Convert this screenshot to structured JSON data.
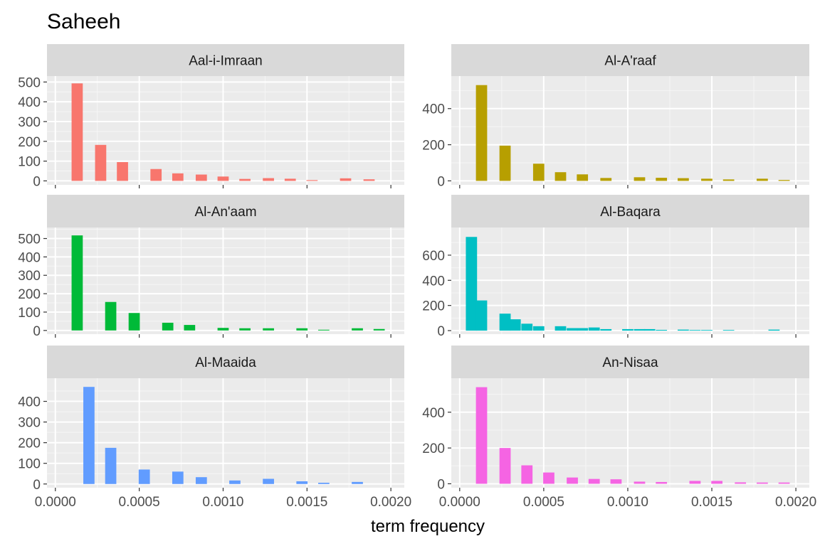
{
  "chart_data": {
    "type": "bar",
    "title": "Saheeh",
    "xlabel": "term frequency",
    "ylabel": "",
    "xlim": [
      -5e-05,
      0.00208
    ],
    "x_ticks": [
      "0.0000",
      "0.0005",
      "0.0010",
      "0.0015",
      "0.0020"
    ],
    "x_tick_values": [
      0,
      0.0005,
      0.001,
      0.0015,
      0.002
    ],
    "bin_width": 6.67e-05,
    "grid": true,
    "legend": "none",
    "panel_background": "#ebebeb",
    "strip_background": "#d9d9d9",
    "panels": [
      {
        "name": "Aal-i-Imraan",
        "color": "#f8766d",
        "ylim": [
          -20,
          530
        ],
        "y_ticks": [
          0,
          100,
          200,
          300,
          400,
          500
        ],
        "bins": [
          {
            "x": 0.00013,
            "y": 493
          },
          {
            "x": 0.00027,
            "y": 182
          },
          {
            "x": 0.0004,
            "y": 95
          },
          {
            "x": 0.0006,
            "y": 60
          },
          {
            "x": 0.00073,
            "y": 38
          },
          {
            "x": 0.00087,
            "y": 32
          },
          {
            "x": 0.001,
            "y": 22
          },
          {
            "x": 0.00113,
            "y": 10
          },
          {
            "x": 0.00127,
            "y": 14
          },
          {
            "x": 0.0014,
            "y": 11
          },
          {
            "x": 0.00153,
            "y": 4
          },
          {
            "x": 0.00173,
            "y": 13
          },
          {
            "x": 0.00187,
            "y": 8
          }
        ]
      },
      {
        "name": "Al-A'raaf",
        "color": "#b79f00",
        "ylim": [
          -22,
          580
        ],
        "y_ticks": [
          0,
          200,
          400
        ],
        "bins": [
          {
            "x": 0.00013,
            "y": 530
          },
          {
            "x": 0.00027,
            "y": 195
          },
          {
            "x": 0.00047,
            "y": 95
          },
          {
            "x": 0.0006,
            "y": 48
          },
          {
            "x": 0.00073,
            "y": 36
          },
          {
            "x": 0.00087,
            "y": 16
          },
          {
            "x": 0.00107,
            "y": 20
          },
          {
            "x": 0.0012,
            "y": 17
          },
          {
            "x": 0.00133,
            "y": 15
          },
          {
            "x": 0.00147,
            "y": 12
          },
          {
            "x": 0.0016,
            "y": 8
          },
          {
            "x": 0.0018,
            "y": 12
          },
          {
            "x": 0.00193,
            "y": 5
          }
        ]
      },
      {
        "name": "Al-An'aam",
        "color": "#00ba38",
        "ylim": [
          -20,
          560
        ],
        "y_ticks": [
          0,
          100,
          200,
          300,
          400,
          500
        ],
        "bins": [
          {
            "x": 0.00013,
            "y": 517
          },
          {
            "x": 0.00033,
            "y": 155
          },
          {
            "x": 0.00047,
            "y": 95
          },
          {
            "x": 0.00067,
            "y": 42
          },
          {
            "x": 0.0008,
            "y": 30
          },
          {
            "x": 0.001,
            "y": 14
          },
          {
            "x": 0.00113,
            "y": 12
          },
          {
            "x": 0.00127,
            "y": 12
          },
          {
            "x": 0.00147,
            "y": 12
          },
          {
            "x": 0.0016,
            "y": 4
          },
          {
            "x": 0.0018,
            "y": 12
          },
          {
            "x": 0.00193,
            "y": 8
          }
        ]
      },
      {
        "name": "Al-Baqara",
        "color": "#00bfc4",
        "ylim": [
          -28,
          820
        ],
        "y_ticks": [
          0,
          200,
          400,
          600
        ],
        "bins": [
          {
            "x": 7e-05,
            "y": 745
          },
          {
            "x": 0.00013,
            "y": 240
          },
          {
            "x": 0.00027,
            "y": 135
          },
          {
            "x": 0.00033,
            "y": 90
          },
          {
            "x": 0.0004,
            "y": 55
          },
          {
            "x": 0.00047,
            "y": 35
          },
          {
            "x": 0.0006,
            "y": 35
          },
          {
            "x": 0.00067,
            "y": 20
          },
          {
            "x": 0.00073,
            "y": 20
          },
          {
            "x": 0.0008,
            "y": 25
          },
          {
            "x": 0.00087,
            "y": 12
          },
          {
            "x": 0.001,
            "y": 12
          },
          {
            "x": 0.00107,
            "y": 12
          },
          {
            "x": 0.00113,
            "y": 12
          },
          {
            "x": 0.0012,
            "y": 6
          },
          {
            "x": 0.00133,
            "y": 8
          },
          {
            "x": 0.0014,
            "y": 5
          },
          {
            "x": 0.00147,
            "y": 5
          },
          {
            "x": 0.0016,
            "y": 5
          },
          {
            "x": 0.00187,
            "y": 8
          }
        ]
      },
      {
        "name": "Al-Maaida",
        "color": "#619cff",
        "ylim": [
          -18,
          512
        ],
        "y_ticks": [
          0,
          100,
          200,
          300,
          400
        ],
        "bins": [
          {
            "x": 0.0002,
            "y": 470
          },
          {
            "x": 0.00033,
            "y": 175
          },
          {
            "x": 0.00053,
            "y": 70
          },
          {
            "x": 0.00073,
            "y": 60
          },
          {
            "x": 0.00087,
            "y": 33
          },
          {
            "x": 0.00107,
            "y": 17
          },
          {
            "x": 0.00127,
            "y": 25
          },
          {
            "x": 0.00147,
            "y": 13
          },
          {
            "x": 0.0016,
            "y": 6
          },
          {
            "x": 0.0018,
            "y": 10
          }
        ]
      },
      {
        "name": "An-Nisaa",
        "color": "#f564e3",
        "ylim": [
          -22,
          590
        ],
        "y_ticks": [
          0,
          200,
          400
        ],
        "bins": [
          {
            "x": 0.00013,
            "y": 540
          },
          {
            "x": 0.00027,
            "y": 200
          },
          {
            "x": 0.0004,
            "y": 103
          },
          {
            "x": 0.00053,
            "y": 63
          },
          {
            "x": 0.00067,
            "y": 35
          },
          {
            "x": 0.0008,
            "y": 27
          },
          {
            "x": 0.00093,
            "y": 25
          },
          {
            "x": 0.00107,
            "y": 12
          },
          {
            "x": 0.0012,
            "y": 10
          },
          {
            "x": 0.0014,
            "y": 16
          },
          {
            "x": 0.00153,
            "y": 16
          },
          {
            "x": 0.00167,
            "y": 8
          },
          {
            "x": 0.0018,
            "y": 7
          },
          {
            "x": 0.00193,
            "y": 7
          }
        ]
      }
    ]
  }
}
